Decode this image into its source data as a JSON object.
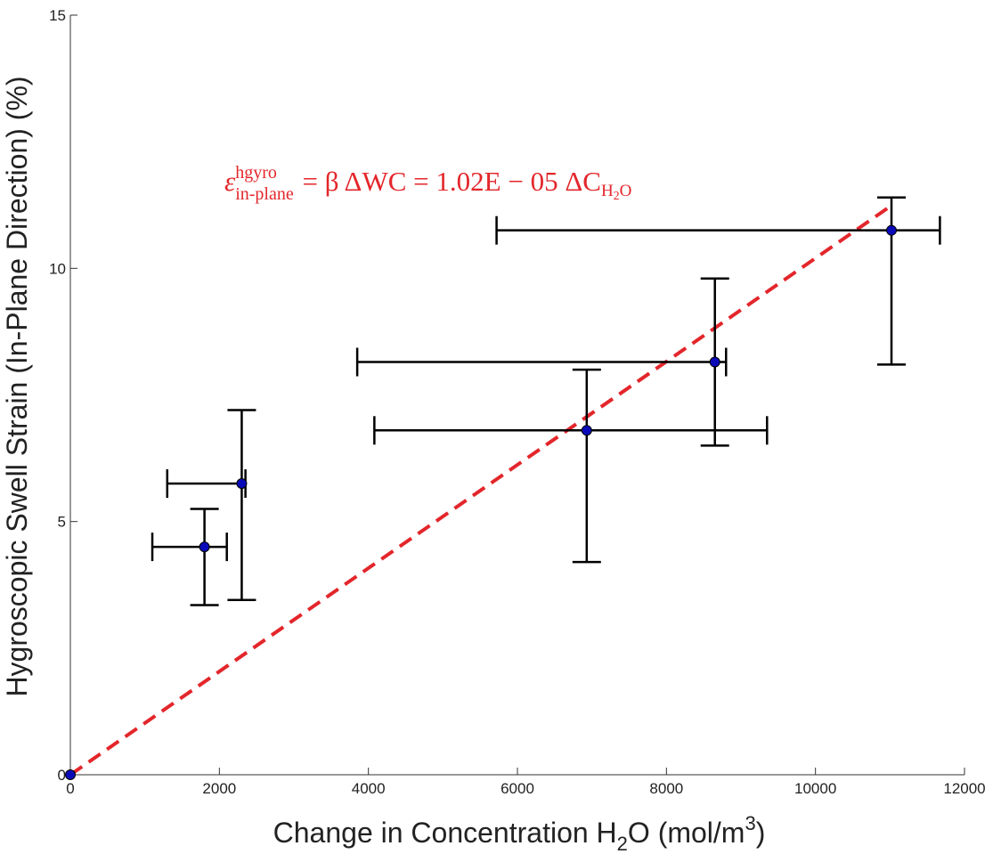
{
  "chart_data": {
    "type": "scatter",
    "title": "",
    "xlabel": "Change  in  Concentration  H",
    "xlabel_sub": "2",
    "xlabel_mid": "O  (mol/m",
    "xlabel_sup": "3",
    "xlabel_end": ")",
    "ylabel": "Hygroscopic Swell Strain (In-Plane Direction) (%)",
    "xlim": [
      0,
      12000
    ],
    "ylim": [
      0,
      15
    ],
    "xticks": [
      0,
      2000,
      4000,
      6000,
      8000,
      10000,
      12000
    ],
    "yticks": [
      0,
      5,
      10,
      15
    ],
    "xtick_labels": [
      "0",
      "2000",
      "4000",
      "6000",
      "8000",
      "10000",
      "12000"
    ],
    "ytick_labels": [
      "0",
      "5",
      "10",
      "15"
    ],
    "grid": false,
    "point_color": "#0a0ab8",
    "errorbar_color": "#000000",
    "fit_color": "#e3262b",
    "points": [
      {
        "x": 0,
        "y": 0,
        "xerr": [
          0,
          0
        ],
        "yerr": [
          0,
          0
        ]
      },
      {
        "x": 1800,
        "y": 4.5,
        "xerr": [
          700,
          300
        ],
        "yerr": [
          1.15,
          0.75
        ]
      },
      {
        "x": 2300,
        "y": 5.75,
        "xerr": [
          1000,
          50
        ],
        "yerr": [
          2.3,
          1.45
        ]
      },
      {
        "x": 6930,
        "y": 6.8,
        "xerr": [
          2850,
          2420
        ],
        "yerr": [
          2.6,
          1.2
        ]
      },
      {
        "x": 8650,
        "y": 8.15,
        "xerr": [
          4800,
          150
        ],
        "yerr": [
          1.65,
          1.65
        ]
      },
      {
        "x": 11020,
        "y": 10.75,
        "xerr": [
          5300,
          650
        ],
        "yerr": [
          2.65,
          0.65
        ]
      }
    ],
    "fit": {
      "slope_percent_per_unit": 0.00102,
      "x_range": [
        0,
        11000
      ],
      "style": "dashed"
    },
    "annotation": {
      "epsilon": "ε",
      "sup": "hgyro",
      "sub": "in-plane",
      "rest": " = β ΔWC = 1.02E − 05 ΔC",
      "tail_sub": "H",
      "tail_sub2": "2",
      "tail_sub3": "O",
      "x": 550,
      "y": 12.15
    }
  }
}
